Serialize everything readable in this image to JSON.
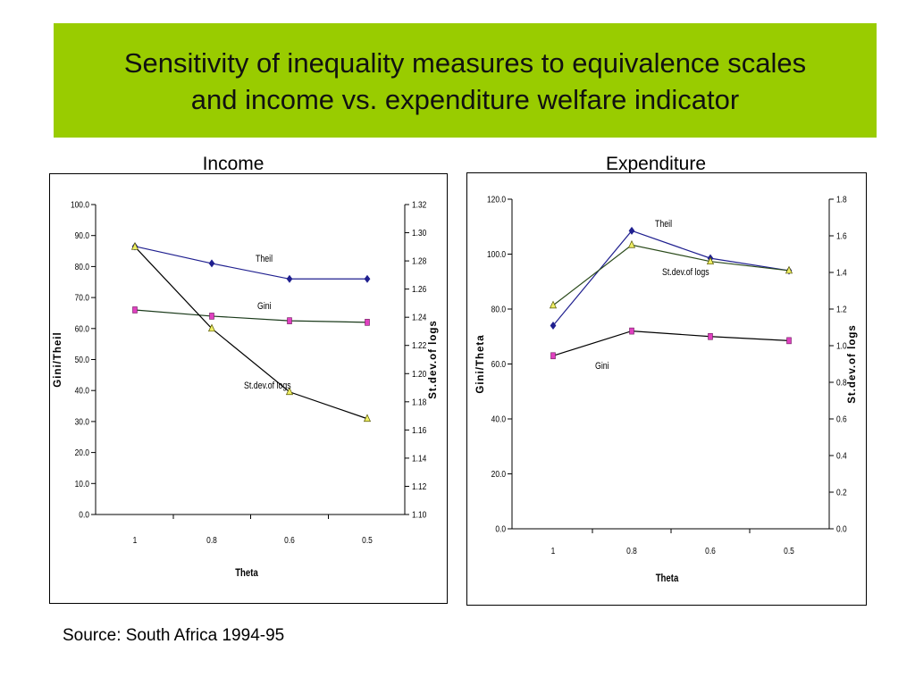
{
  "slide": {
    "title_line1": "Sensitivity of inequality measures to equivalence scales",
    "title_line2": "and income vs. expenditure welfare indicator",
    "source": "Source: South Africa 1994-95",
    "banner_color": "#99cc00"
  },
  "chart_data": [
    {
      "type": "line",
      "panel_title": "Income",
      "xlabel": "Theta",
      "ylabel_left": "Gini/Theil",
      "ylabel_right": "St.dev.of logs",
      "categories": [
        "1",
        "0.8",
        "0.6",
        "0.5"
      ],
      "ylim_left": [
        0,
        100
      ],
      "yticks_left": [
        "0.0",
        "10.0",
        "20.0",
        "30.0",
        "40.0",
        "50.0",
        "60.0",
        "70.0",
        "80.0",
        "90.0",
        "100.0"
      ],
      "ylim_right": [
        1.1,
        1.32
      ],
      "yticks_right": [
        "1.10",
        "1.12",
        "1.14",
        "1.16",
        "1.18",
        "1.20",
        "1.22",
        "1.24",
        "1.26",
        "1.28",
        "1.30",
        "1.32"
      ],
      "grid": false,
      "series": [
        {
          "name": "Theil",
          "axis": "left",
          "values": [
            86.5,
            81.0,
            76.0,
            76.0
          ],
          "color": "#1f1f8f",
          "marker": "diamond",
          "marker_color": "#1f1f8f"
        },
        {
          "name": "Gini",
          "axis": "left",
          "values": [
            66.0,
            64.0,
            62.5,
            62.0
          ],
          "color": "#1a3a1a",
          "marker": "square",
          "marker_color": "#e040c0"
        },
        {
          "name": "St.dev.of logs",
          "axis": "right",
          "values": [
            1.29,
            1.232,
            1.187,
            1.168
          ],
          "color": "#000000",
          "marker": "triangle",
          "marker_color": "#eeee66"
        }
      ]
    },
    {
      "type": "line",
      "panel_title": "Expenditure",
      "xlabel": "Theta",
      "ylabel_left": "Gini/Theta",
      "ylabel_right": "St.dev.of logs",
      "categories": [
        "1",
        "0.8",
        "0.6",
        "0.5"
      ],
      "ylim_left": [
        0,
        120
      ],
      "yticks_left": [
        "0.0",
        "20.0",
        "40.0",
        "60.0",
        "80.0",
        "100.0",
        "120.0"
      ],
      "ylim_right": [
        0,
        1.8
      ],
      "yticks_right": [
        "0.0",
        "0.2",
        "0.4",
        "0.6",
        "0.8",
        "1.0",
        "1.2",
        "1.4",
        "1.6",
        "1.8"
      ],
      "grid": false,
      "series": [
        {
          "name": "Theil",
          "axis": "left",
          "values": [
            74.0,
            108.5,
            98.5,
            94.0
          ],
          "color": "#1f1f8f",
          "marker": "diamond",
          "marker_color": "#1f1f8f"
        },
        {
          "name": "St.dev.of logs",
          "axis": "right",
          "values": [
            1.22,
            1.55,
            1.46,
            1.41
          ],
          "color": "#2a4a1a",
          "marker": "triangle",
          "marker_color": "#eeee66"
        },
        {
          "name": "Gini",
          "axis": "left",
          "values": [
            63.0,
            72.0,
            70.0,
            68.5
          ],
          "color": "#000000",
          "marker": "square",
          "marker_color": "#e040c0"
        }
      ]
    }
  ]
}
